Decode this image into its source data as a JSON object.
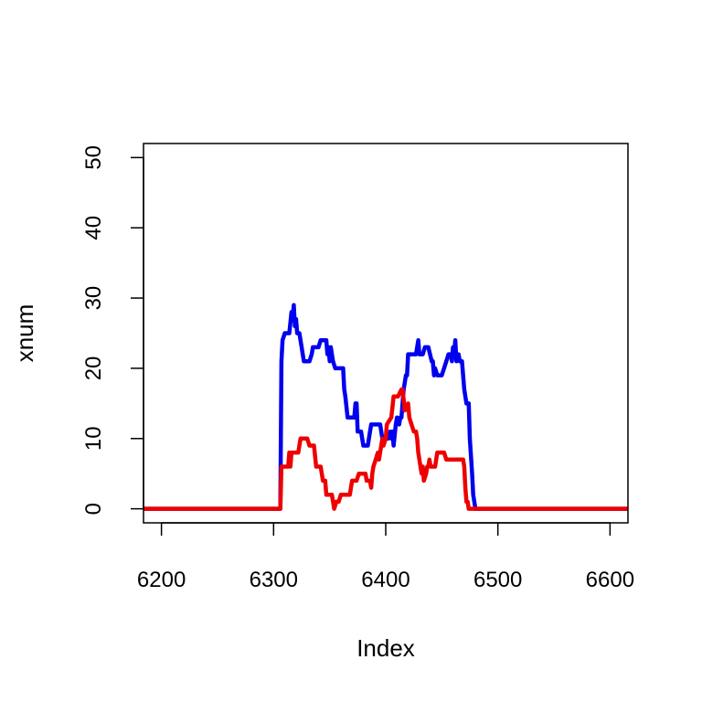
{
  "chart_data": {
    "type": "line",
    "title": "",
    "xlabel": "Index",
    "ylabel": "xnum",
    "xlim": [
      6184,
      6616
    ],
    "ylim": [
      -2,
      52
    ],
    "xticks": [
      6200,
      6300,
      6400,
      6500,
      6600
    ],
    "yticks": [
      0,
      10,
      20,
      30,
      40,
      50
    ],
    "grid": false,
    "legend": "none",
    "series": [
      {
        "color": "#0000ee",
        "points": [
          [
            6184,
            0
          ],
          [
            6306,
            0
          ],
          [
            6307,
            21
          ],
          [
            6308,
            24
          ],
          [
            6310,
            25
          ],
          [
            6314,
            25
          ],
          [
            6316,
            28
          ],
          [
            6317,
            27
          ],
          [
            6318,
            29
          ],
          [
            6319,
            26
          ],
          [
            6320,
            27
          ],
          [
            6321,
            25
          ],
          [
            6323,
            25
          ],
          [
            6325,
            23
          ],
          [
            6327,
            21
          ],
          [
            6332,
            21
          ],
          [
            6334,
            22
          ],
          [
            6335,
            23
          ],
          [
            6340,
            23
          ],
          [
            6342,
            24
          ],
          [
            6347,
            24
          ],
          [
            6348,
            22
          ],
          [
            6349,
            23
          ],
          [
            6350,
            21
          ],
          [
            6351,
            23
          ],
          [
            6353,
            21
          ],
          [
            6355,
            20
          ],
          [
            6362,
            20
          ],
          [
            6363,
            17
          ],
          [
            6364,
            16
          ],
          [
            6366,
            13
          ],
          [
            6372,
            13
          ],
          [
            6373,
            15
          ],
          [
            6374,
            15
          ],
          [
            6375,
            11
          ],
          [
            6378,
            11
          ],
          [
            6380,
            9
          ],
          [
            6384,
            9
          ],
          [
            6386,
            11
          ],
          [
            6387,
            12
          ],
          [
            6395,
            12
          ],
          [
            6397,
            10
          ],
          [
            6402,
            10
          ],
          [
            6404,
            11
          ],
          [
            6405,
            10
          ],
          [
            6406,
            11
          ],
          [
            6407,
            9
          ],
          [
            6409,
            12
          ],
          [
            6410,
            13
          ],
          [
            6412,
            12
          ],
          [
            6413,
            13
          ],
          [
            6414,
            13
          ],
          [
            6416,
            17
          ],
          [
            6418,
            19
          ],
          [
            6419,
            19
          ],
          [
            6420,
            22
          ],
          [
            6427,
            22
          ],
          [
            6429,
            24
          ],
          [
            6430,
            22
          ],
          [
            6433,
            22
          ],
          [
            6435,
            23
          ],
          [
            6438,
            23
          ],
          [
            6441,
            21
          ],
          [
            6442,
            21
          ],
          [
            6443,
            19
          ],
          [
            6444,
            20
          ],
          [
            6446,
            19
          ],
          [
            6450,
            19
          ],
          [
            6452,
            20
          ],
          [
            6454,
            21
          ],
          [
            6456,
            22
          ],
          [
            6458,
            22
          ],
          [
            6459,
            21
          ],
          [
            6460,
            23
          ],
          [
            6461,
            22
          ],
          [
            6462,
            24
          ],
          [
            6463,
            21
          ],
          [
            6465,
            22
          ],
          [
            6466,
            21
          ],
          [
            6468,
            21
          ],
          [
            6470,
            17
          ],
          [
            6471,
            16
          ],
          [
            6472,
            15
          ],
          [
            6474,
            15
          ],
          [
            6475,
            10
          ],
          [
            6477,
            5
          ],
          [
            6478,
            2
          ],
          [
            6479,
            1
          ],
          [
            6480,
            0
          ],
          [
            6616,
            0
          ]
        ]
      },
      {
        "color": "#ee0000",
        "points": [
          [
            6184,
            0
          ],
          [
            6306,
            0
          ],
          [
            6307,
            6
          ],
          [
            6313,
            6
          ],
          [
            6314,
            8
          ],
          [
            6315,
            6
          ],
          [
            6316,
            8
          ],
          [
            6322,
            8
          ],
          [
            6324,
            10
          ],
          [
            6330,
            10
          ],
          [
            6332,
            9
          ],
          [
            6336,
            9
          ],
          [
            6338,
            6
          ],
          [
            6342,
            6
          ],
          [
            6344,
            4
          ],
          [
            6346,
            4
          ],
          [
            6347,
            2
          ],
          [
            6352,
            2
          ],
          [
            6354,
            0
          ],
          [
            6356,
            1
          ],
          [
            6358,
            1
          ],
          [
            6360,
            2
          ],
          [
            6368,
            2
          ],
          [
            6370,
            4
          ],
          [
            6374,
            4
          ],
          [
            6376,
            5
          ],
          [
            6382,
            5
          ],
          [
            6383,
            4
          ],
          [
            6386,
            4
          ],
          [
            6387,
            3
          ],
          [
            6388,
            5
          ],
          [
            6389,
            6
          ],
          [
            6391,
            7
          ],
          [
            6393,
            8
          ],
          [
            6394,
            7
          ],
          [
            6396,
            9
          ],
          [
            6397,
            10
          ],
          [
            6398,
            9
          ],
          [
            6400,
            10
          ],
          [
            6401,
            12
          ],
          [
            6405,
            13
          ],
          [
            6407,
            16
          ],
          [
            6411,
            16
          ],
          [
            6414,
            17
          ],
          [
            6415,
            17
          ],
          [
            6417,
            14
          ],
          [
            6420,
            15
          ],
          [
            6421,
            13
          ],
          [
            6423,
            12
          ],
          [
            6425,
            11
          ],
          [
            6427,
            11
          ],
          [
            6428,
            10
          ],
          [
            6429,
            8
          ],
          [
            6431,
            6
          ],
          [
            6432,
            5
          ],
          [
            6433,
            6
          ],
          [
            6434,
            4
          ],
          [
            6436,
            5
          ],
          [
            6437,
            6
          ],
          [
            6438,
            6
          ],
          [
            6439,
            7
          ],
          [
            6440,
            6
          ],
          [
            6444,
            6
          ],
          [
            6446,
            8
          ],
          [
            6452,
            8
          ],
          [
            6454,
            7
          ],
          [
            6469,
            7
          ],
          [
            6470,
            6
          ],
          [
            6471,
            3
          ],
          [
            6472,
            1
          ],
          [
            6473,
            1
          ],
          [
            6474,
            0
          ],
          [
            6616,
            0
          ]
        ]
      }
    ]
  }
}
